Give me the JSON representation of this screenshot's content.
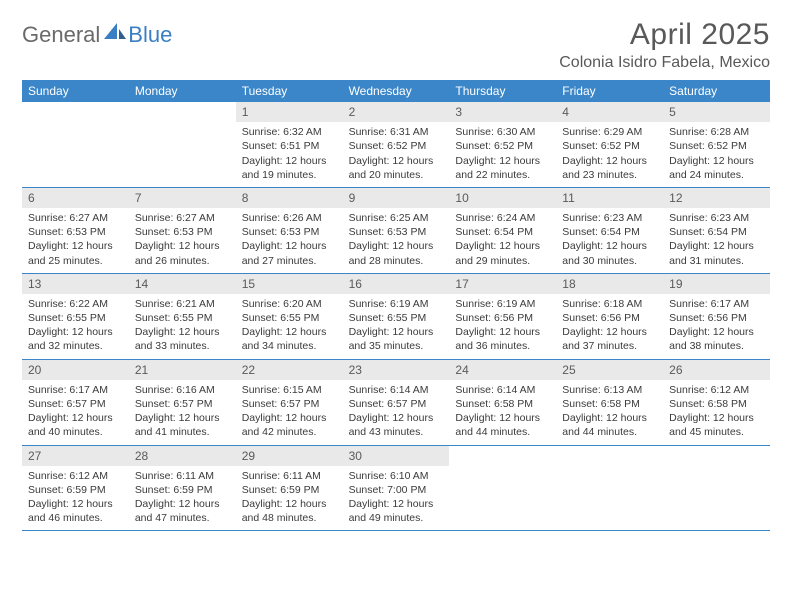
{
  "logo": {
    "text1": "General",
    "text2": "Blue"
  },
  "title": "April 2025",
  "location": "Colonia Isidro Fabela, Mexico",
  "colors": {
    "header_bg": "#3a86c8",
    "header_text": "#ffffff",
    "daynum_bg": "#e9e9e9",
    "daynum_text": "#5a5a5a",
    "body_text": "#3b3b3b",
    "title_text": "#595959",
    "logo_gray": "#6a6a6a",
    "logo_blue": "#3a7fc4",
    "week_border": "#3a86c8"
  },
  "typography": {
    "title_fontsize": 30,
    "location_fontsize": 16,
    "weekday_fontsize": 12,
    "daynum_fontsize": 12,
    "body_fontsize": 10.5,
    "font_family": "Arial"
  },
  "layout": {
    "columns": 7,
    "rows": 5,
    "leading_blanks": 2,
    "cell_min_height": 84
  },
  "weekdays": [
    "Sunday",
    "Monday",
    "Tuesday",
    "Wednesday",
    "Thursday",
    "Friday",
    "Saturday"
  ],
  "days": [
    {
      "n": "1",
      "sr": "6:32 AM",
      "ss": "6:51 PM",
      "dl": "12 hours and 19 minutes."
    },
    {
      "n": "2",
      "sr": "6:31 AM",
      "ss": "6:52 PM",
      "dl": "12 hours and 20 minutes."
    },
    {
      "n": "3",
      "sr": "6:30 AM",
      "ss": "6:52 PM",
      "dl": "12 hours and 22 minutes."
    },
    {
      "n": "4",
      "sr": "6:29 AM",
      "ss": "6:52 PM",
      "dl": "12 hours and 23 minutes."
    },
    {
      "n": "5",
      "sr": "6:28 AM",
      "ss": "6:52 PM",
      "dl": "12 hours and 24 minutes."
    },
    {
      "n": "6",
      "sr": "6:27 AM",
      "ss": "6:53 PM",
      "dl": "12 hours and 25 minutes."
    },
    {
      "n": "7",
      "sr": "6:27 AM",
      "ss": "6:53 PM",
      "dl": "12 hours and 26 minutes."
    },
    {
      "n": "8",
      "sr": "6:26 AM",
      "ss": "6:53 PM",
      "dl": "12 hours and 27 minutes."
    },
    {
      "n": "9",
      "sr": "6:25 AM",
      "ss": "6:53 PM",
      "dl": "12 hours and 28 minutes."
    },
    {
      "n": "10",
      "sr": "6:24 AM",
      "ss": "6:54 PM",
      "dl": "12 hours and 29 minutes."
    },
    {
      "n": "11",
      "sr": "6:23 AM",
      "ss": "6:54 PM",
      "dl": "12 hours and 30 minutes."
    },
    {
      "n": "12",
      "sr": "6:23 AM",
      "ss": "6:54 PM",
      "dl": "12 hours and 31 minutes."
    },
    {
      "n": "13",
      "sr": "6:22 AM",
      "ss": "6:55 PM",
      "dl": "12 hours and 32 minutes."
    },
    {
      "n": "14",
      "sr": "6:21 AM",
      "ss": "6:55 PM",
      "dl": "12 hours and 33 minutes."
    },
    {
      "n": "15",
      "sr": "6:20 AM",
      "ss": "6:55 PM",
      "dl": "12 hours and 34 minutes."
    },
    {
      "n": "16",
      "sr": "6:19 AM",
      "ss": "6:55 PM",
      "dl": "12 hours and 35 minutes."
    },
    {
      "n": "17",
      "sr": "6:19 AM",
      "ss": "6:56 PM",
      "dl": "12 hours and 36 minutes."
    },
    {
      "n": "18",
      "sr": "6:18 AM",
      "ss": "6:56 PM",
      "dl": "12 hours and 37 minutes."
    },
    {
      "n": "19",
      "sr": "6:17 AM",
      "ss": "6:56 PM",
      "dl": "12 hours and 38 minutes."
    },
    {
      "n": "20",
      "sr": "6:17 AM",
      "ss": "6:57 PM",
      "dl": "12 hours and 40 minutes."
    },
    {
      "n": "21",
      "sr": "6:16 AM",
      "ss": "6:57 PM",
      "dl": "12 hours and 41 minutes."
    },
    {
      "n": "22",
      "sr": "6:15 AM",
      "ss": "6:57 PM",
      "dl": "12 hours and 42 minutes."
    },
    {
      "n": "23",
      "sr": "6:14 AM",
      "ss": "6:57 PM",
      "dl": "12 hours and 43 minutes."
    },
    {
      "n": "24",
      "sr": "6:14 AM",
      "ss": "6:58 PM",
      "dl": "12 hours and 44 minutes."
    },
    {
      "n": "25",
      "sr": "6:13 AM",
      "ss": "6:58 PM",
      "dl": "12 hours and 44 minutes."
    },
    {
      "n": "26",
      "sr": "6:12 AM",
      "ss": "6:58 PM",
      "dl": "12 hours and 45 minutes."
    },
    {
      "n": "27",
      "sr": "6:12 AM",
      "ss": "6:59 PM",
      "dl": "12 hours and 46 minutes."
    },
    {
      "n": "28",
      "sr": "6:11 AM",
      "ss": "6:59 PM",
      "dl": "12 hours and 47 minutes."
    },
    {
      "n": "29",
      "sr": "6:11 AM",
      "ss": "6:59 PM",
      "dl": "12 hours and 48 minutes."
    },
    {
      "n": "30",
      "sr": "6:10 AM",
      "ss": "7:00 PM",
      "dl": "12 hours and 49 minutes."
    }
  ],
  "labels": {
    "sunrise": "Sunrise:",
    "sunset": "Sunset:",
    "daylight": "Daylight:"
  }
}
